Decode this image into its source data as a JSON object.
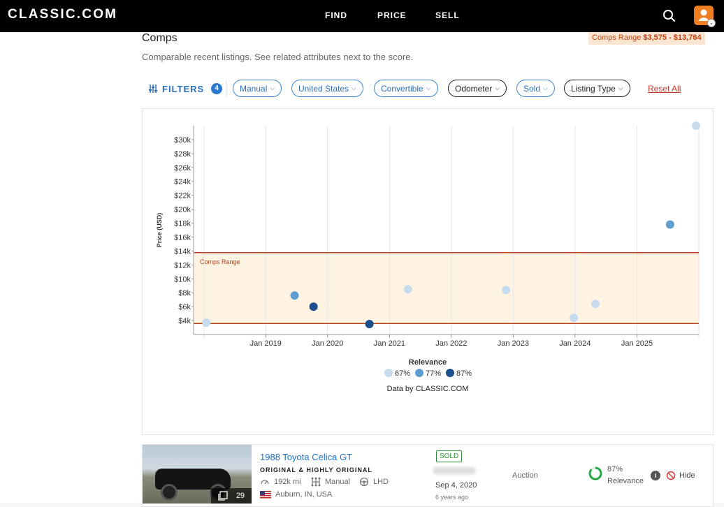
{
  "header": {
    "logo": "CLASSIC.COM",
    "nav": [
      "FIND",
      "PRICE",
      "SELL"
    ]
  },
  "comps": {
    "title": "Comps",
    "subtitle": "Comparable recent listings. See related attributes next to the score.",
    "range_label": "Comps Range",
    "range_value": "$3,575 - $13,764"
  },
  "filters": {
    "label": "FILTERS",
    "count": "4",
    "pills": [
      {
        "label": "Manual",
        "active": true
      },
      {
        "label": "United States",
        "active": true
      },
      {
        "label": "Convertible",
        "active": true
      },
      {
        "label": "Odometer",
        "active": false
      },
      {
        "label": "Sold",
        "active": true
      },
      {
        "label": "Listing Type",
        "active": false
      }
    ],
    "reset": "Reset All"
  },
  "chart_data": {
    "type": "scatter",
    "ylabel": "Price (USD)",
    "yticks": [
      "$4k",
      "$6k",
      "$8k",
      "$10k",
      "$12k",
      "$14k",
      "$16k",
      "$18k",
      "$20k",
      "$22k",
      "$24k",
      "$26k",
      "$28k",
      "$30k"
    ],
    "ylim": [
      2000,
      32000
    ],
    "xticks": [
      "Jan 2019",
      "Jan 2020",
      "Jan 2021",
      "Jan 2022",
      "Jan 2023",
      "Jan 2024",
      "Jan 2025"
    ],
    "xlim": [
      "2017-11-01",
      "2026-01-01"
    ],
    "grid": "vertical",
    "range_band": {
      "label": "Comps Range",
      "low": 3575,
      "high": 13764
    },
    "points": [
      {
        "x": "2018-01-15",
        "y": 3700,
        "relevance": "67%"
      },
      {
        "x": "2019-06-20",
        "y": 7600,
        "relevance": "77%"
      },
      {
        "x": "2019-10-10",
        "y": 6000,
        "relevance": "87%"
      },
      {
        "x": "2020-09-04",
        "y": 3500,
        "relevance": "87%"
      },
      {
        "x": "2021-04-20",
        "y": 8500,
        "relevance": "67%"
      },
      {
        "x": "2022-11-20",
        "y": 8400,
        "relevance": "67%"
      },
      {
        "x": "2023-12-25",
        "y": 4400,
        "relevance": "67%"
      },
      {
        "x": "2024-05-01",
        "y": 6400,
        "relevance": "67%"
      },
      {
        "x": "2025-07-15",
        "y": 17800,
        "relevance": "77%"
      },
      {
        "x": "2025-12-15",
        "y": 32000,
        "relevance": "67%"
      }
    ],
    "legend_title": "Relevance",
    "legend": [
      {
        "label": "67%",
        "color": "#c6dcee"
      },
      {
        "label": "77%",
        "color": "#5e9ecf"
      },
      {
        "label": "87%",
        "color": "#1c4f8c"
      }
    ],
    "credit": "Data by CLASSIC.COM",
    "colors": {
      "band": "#fff3e3",
      "band_line": "#b5451b",
      "band_label": "#b5451b"
    }
  },
  "listing": {
    "title": "1988 Toyota Celica GT",
    "subtitle": "ORIGINAL & HIGHLY ORIGINAL",
    "photos": "29",
    "mileage": "192k mi",
    "transmission": "Manual",
    "drive": "LHD",
    "location": "Auburn, IN, USA",
    "status": "SOLD",
    "date": "Sep 4, 2020",
    "ago": "6 years ago",
    "sale_type": "Auction",
    "relevance_pct": "87%",
    "relevance_label": "Relevance",
    "relevance_value": 0.87,
    "hide": "Hide"
  }
}
